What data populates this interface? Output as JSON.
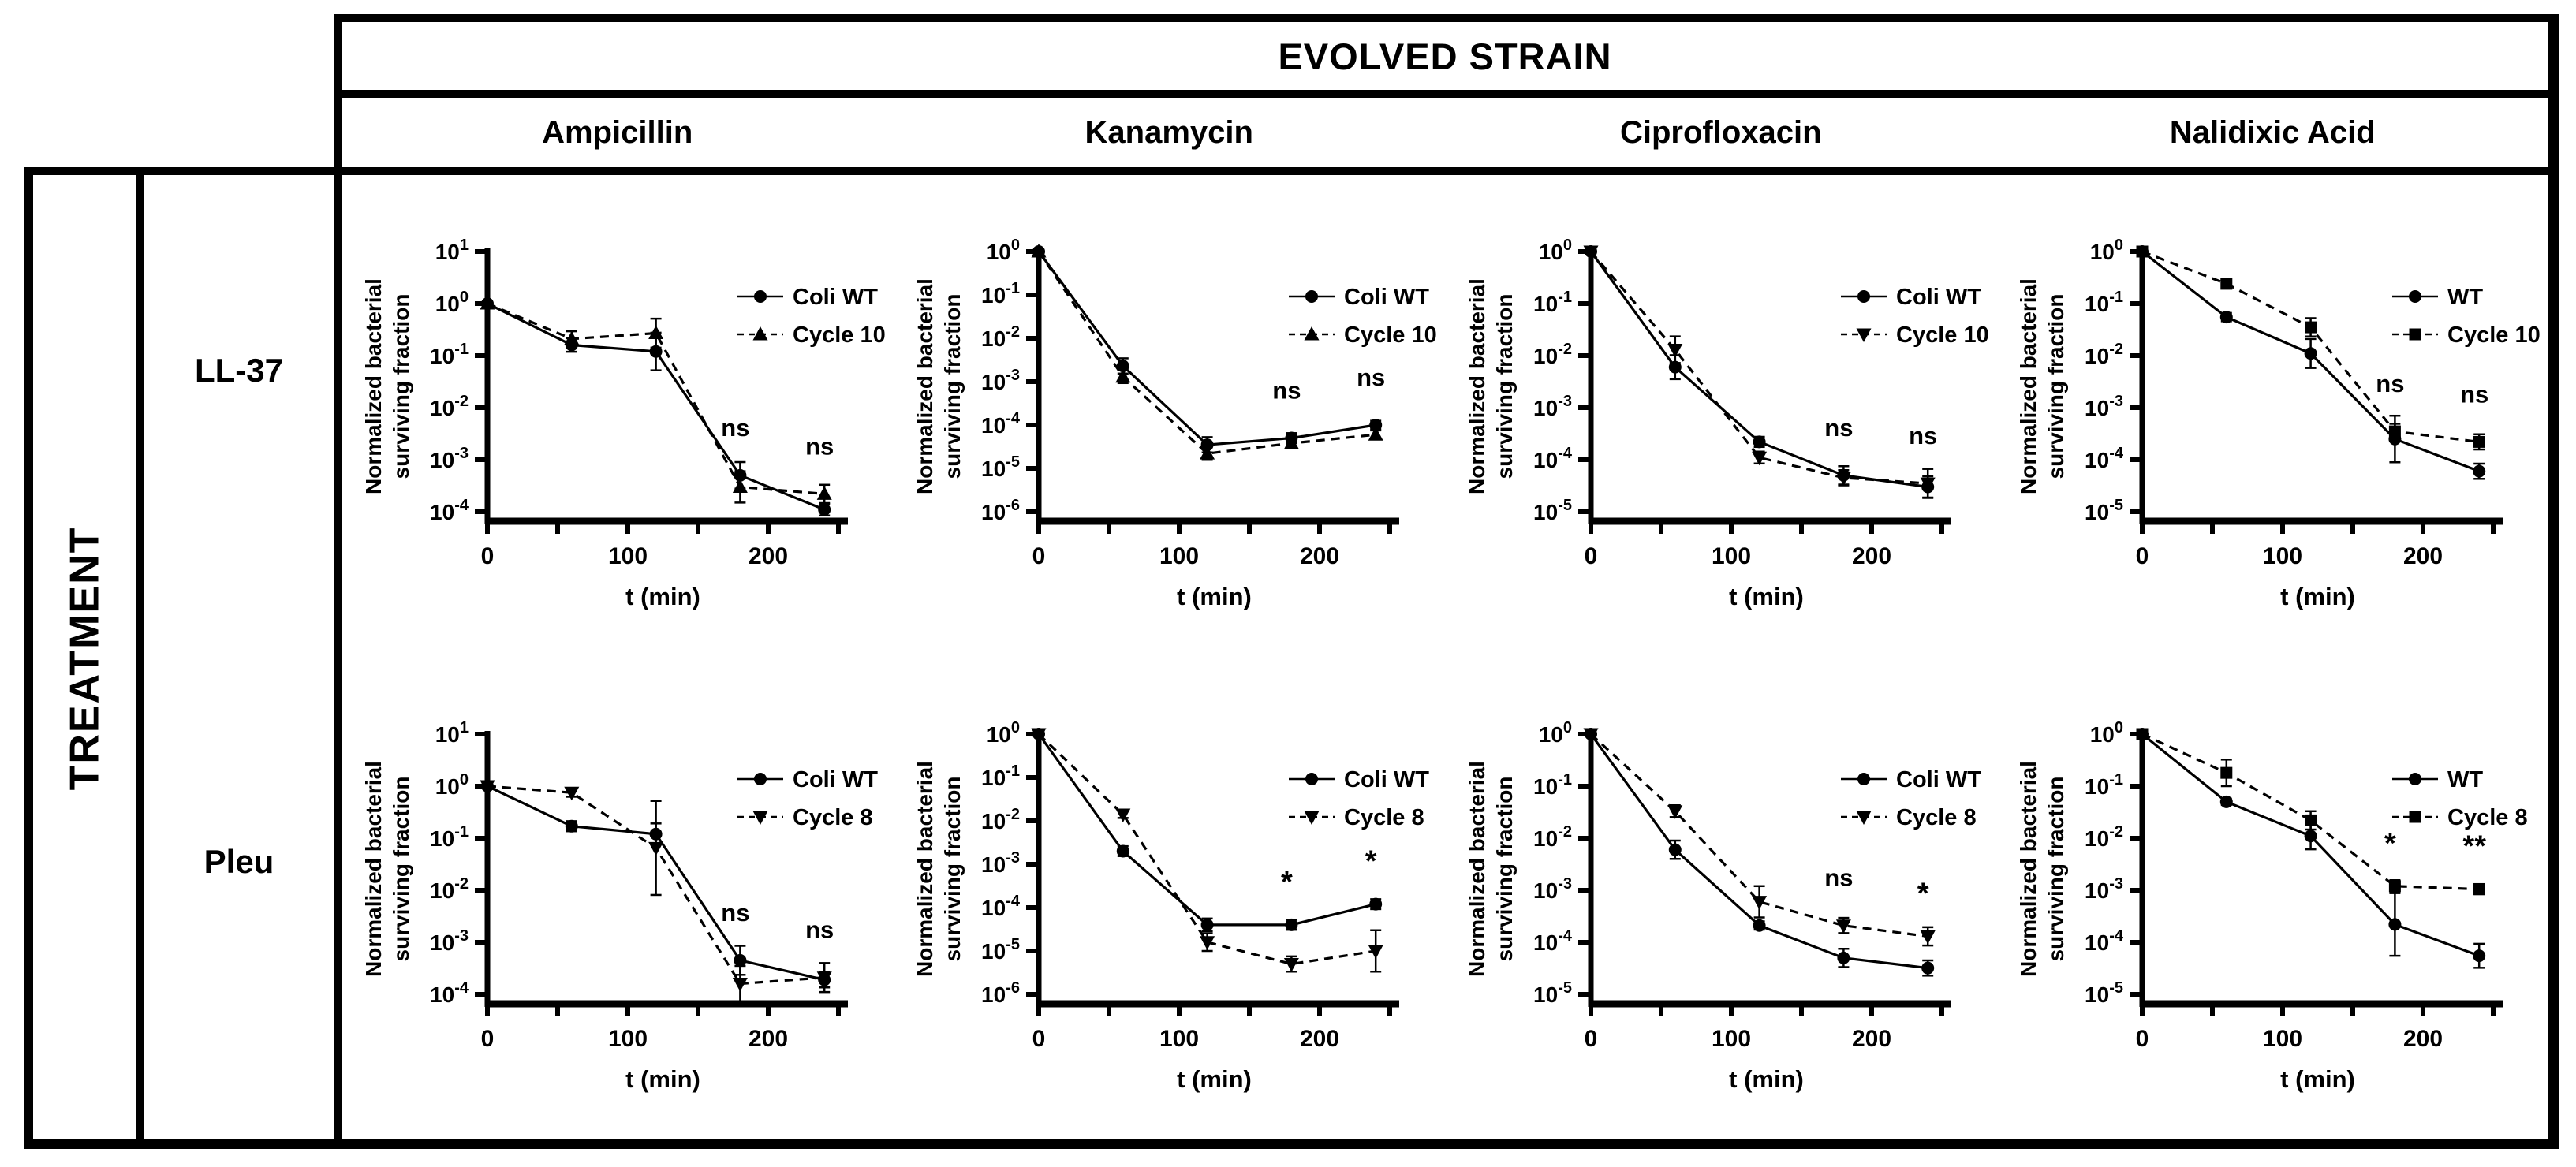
{
  "header": {
    "title": "EVOLVED STRAIN",
    "columns": [
      "Ampicillin",
      "Kanamycin",
      "Ciprofloxacin",
      "Nalidixic Acid"
    ]
  },
  "left": {
    "axis_label": "TREATMENT",
    "rows": [
      "LL-37",
      "Pleu"
    ]
  },
  "colors": {
    "foreground": "#000000",
    "background": "#ffffff"
  },
  "plot_common": {
    "xlabel": "t (min)",
    "ylabel_lines": [
      "Normalized bacterial",
      "surviving fraction"
    ],
    "xlim": [
      0,
      250
    ],
    "x_major_ticks": [
      0,
      100,
      200
    ],
    "x_minor_ticks": [
      50,
      150,
      250
    ],
    "grid": false,
    "legend_position": "upper-right-inside"
  },
  "chart_data": [
    {
      "type": "line",
      "row": "LL-37",
      "col": "Ampicillin",
      "x": [
        0,
        60,
        120,
        180,
        240
      ],
      "ylim_exp": [
        1,
        -4
      ],
      "series": [
        {
          "name": "Coli WT",
          "marker": "circle",
          "line": "solid",
          "y": [
            1,
            0.16,
            0.12,
            0.0005,
            0.00011
          ],
          "err": [
            1,
            1.35,
            2.3,
            1.8,
            1.3
          ]
        },
        {
          "name": "Cycle 10",
          "marker": "triangle-up",
          "line": "dashed",
          "y": [
            1,
            0.21,
            0.27,
            0.0003,
            0.00022
          ],
          "err": [
            1,
            1.4,
            1.9,
            2.0,
            1.5
          ]
        }
      ],
      "sig": [
        {
          "t": 180,
          "label": "ns"
        },
        {
          "t": 240,
          "label": "ns"
        }
      ]
    },
    {
      "type": "line",
      "row": "LL-37",
      "col": "Kanamycin",
      "x": [
        0,
        60,
        120,
        180,
        240
      ],
      "ylim_exp": [
        0,
        -6
      ],
      "series": [
        {
          "name": "Coli WT",
          "marker": "circle",
          "line": "solid",
          "y": [
            1,
            0.0023,
            3.5e-05,
            5e-05,
            0.0001
          ],
          "err": [
            1,
            1.5,
            1.5,
            1.3,
            1.25
          ]
        },
        {
          "name": "Cycle 10",
          "marker": "triangle-up",
          "line": "dashed",
          "y": [
            1,
            0.0013,
            2.2e-05,
            3.8e-05,
            6e-05
          ],
          "err": [
            1,
            1.4,
            1.4,
            1.3,
            1.25
          ]
        }
      ],
      "sig": [
        {
          "t": 180,
          "label": "ns"
        },
        {
          "t": 240,
          "label": "ns"
        }
      ]
    },
    {
      "type": "line",
      "row": "LL-37",
      "col": "Ciprofloxacin",
      "x": [
        0,
        60,
        120,
        180,
        240
      ],
      "ylim_exp": [
        0,
        -5
      ],
      "series": [
        {
          "name": "Coli WT",
          "marker": "circle",
          "line": "solid",
          "y": [
            1,
            0.006,
            0.00022,
            5e-05,
            3e-05
          ],
          "err": [
            1,
            1.7,
            1.25,
            1.5,
            1.6
          ]
        },
        {
          "name": "Cycle 10",
          "marker": "triangle-down",
          "line": "dashed",
          "y": [
            1,
            0.013,
            0.00011,
            4.5e-05,
            3.5e-05
          ],
          "err": [
            1,
            1.8,
            1.3,
            1.4,
            1.9
          ]
        }
      ],
      "sig": [
        {
          "t": 180,
          "label": "ns"
        },
        {
          "t": 240,
          "label": "ns"
        }
      ]
    },
    {
      "type": "line",
      "row": "LL-37",
      "col": "Nalidixic Acid",
      "x": [
        0,
        60,
        120,
        180,
        240
      ],
      "ylim_exp": [
        0,
        -5
      ],
      "series": [
        {
          "name": "WT",
          "marker": "circle",
          "line": "solid",
          "y": [
            1,
            0.055,
            0.011,
            0.00025,
            6e-05
          ],
          "err": [
            1,
            1.2,
            1.9,
            2.8,
            1.4
          ]
        },
        {
          "name": "Cycle 10",
          "marker": "square",
          "line": "dashed",
          "y": [
            1,
            0.24,
            0.035,
            0.00035,
            0.00022
          ],
          "err": [
            1,
            1.15,
            1.5,
            1.4,
            1.4
          ]
        }
      ],
      "sig": [
        {
          "t": 180,
          "label": "ns"
        },
        {
          "t": 240,
          "label": "ns"
        }
      ]
    },
    {
      "type": "line",
      "row": "Pleu",
      "col": "Ampicillin",
      "x": [
        0,
        60,
        120,
        180,
        240
      ],
      "ylim_exp": [
        1,
        -4
      ],
      "series": [
        {
          "name": "Coli WT",
          "marker": "circle",
          "line": "solid",
          "y": [
            1,
            0.17,
            0.12,
            0.00045,
            0.00019
          ],
          "err": [
            1,
            1.25,
            1.6,
            1.9,
            1.4
          ]
        },
        {
          "name": "Cycle 8",
          "marker": "triangle-down",
          "line": "dashed",
          "y": [
            1,
            0.75,
            0.065,
            0.00016,
            0.00021
          ],
          "err": [
            1,
            1.2,
            8,
            2.2,
            1.9
          ]
        }
      ],
      "sig": [
        {
          "t": 180,
          "label": "ns"
        },
        {
          "t": 240,
          "label": "ns"
        }
      ]
    },
    {
      "type": "line",
      "row": "Pleu",
      "col": "Kanamycin",
      "x": [
        0,
        60,
        120,
        180,
        240
      ],
      "ylim_exp": [
        0,
        -6
      ],
      "series": [
        {
          "name": "Coli WT",
          "marker": "circle",
          "line": "solid",
          "y": [
            1,
            0.002,
            4e-05,
            4e-05,
            0.00012
          ],
          "err": [
            1,
            1.3,
            1.4,
            1.3,
            1.3
          ]
        },
        {
          "name": "Cycle 8",
          "marker": "triangle-down",
          "line": "dashed",
          "y": [
            1,
            0.014,
            1.6e-05,
            5e-06,
            1e-05
          ],
          "err": [
            1,
            1.2,
            1.6,
            1.5,
            3
          ]
        }
      ],
      "sig": [
        {
          "t": 180,
          "label": "*"
        },
        {
          "t": 240,
          "label": "*"
        }
      ]
    },
    {
      "type": "line",
      "row": "Pleu",
      "col": "Ciprofloxacin",
      "x": [
        0,
        60,
        120,
        180,
        240
      ],
      "ylim_exp": [
        0,
        -5
      ],
      "series": [
        {
          "name": "Coli WT",
          "marker": "circle",
          "line": "solid",
          "y": [
            1,
            0.006,
            0.00021,
            5e-05,
            3.2e-05
          ],
          "err": [
            1,
            1.5,
            1.2,
            1.5,
            1.4
          ]
        },
        {
          "name": "Cycle 8",
          "marker": "triangle-down",
          "line": "dashed",
          "y": [
            1,
            0.033,
            0.0006,
            0.00021,
            0.00013
          ],
          "err": [
            1,
            1.3,
            2.0,
            1.4,
            1.5
          ]
        }
      ],
      "sig": [
        {
          "t": 180,
          "label": "ns"
        },
        {
          "t": 240,
          "label": "*"
        }
      ]
    },
    {
      "type": "line",
      "row": "Pleu",
      "col": "Nalidixic Acid",
      "x": [
        0,
        60,
        120,
        180,
        240
      ],
      "ylim_exp": [
        0,
        -5
      ],
      "series": [
        {
          "name": "WT",
          "marker": "circle",
          "line": "solid",
          "y": [
            1,
            0.05,
            0.011,
            0.00022,
            5.5e-05
          ],
          "err": [
            1,
            1.15,
            1.8,
            4,
            1.7
          ]
        },
        {
          "name": "Cycle 8",
          "marker": "square",
          "line": "dashed",
          "y": [
            1,
            0.18,
            0.022,
            0.0012,
            0.00105
          ],
          "err": [
            1,
            1.8,
            1.5,
            1.3,
            1.25
          ]
        }
      ],
      "sig": [
        {
          "t": 180,
          "label": "*"
        },
        {
          "t": 240,
          "label": "**"
        }
      ]
    }
  ]
}
